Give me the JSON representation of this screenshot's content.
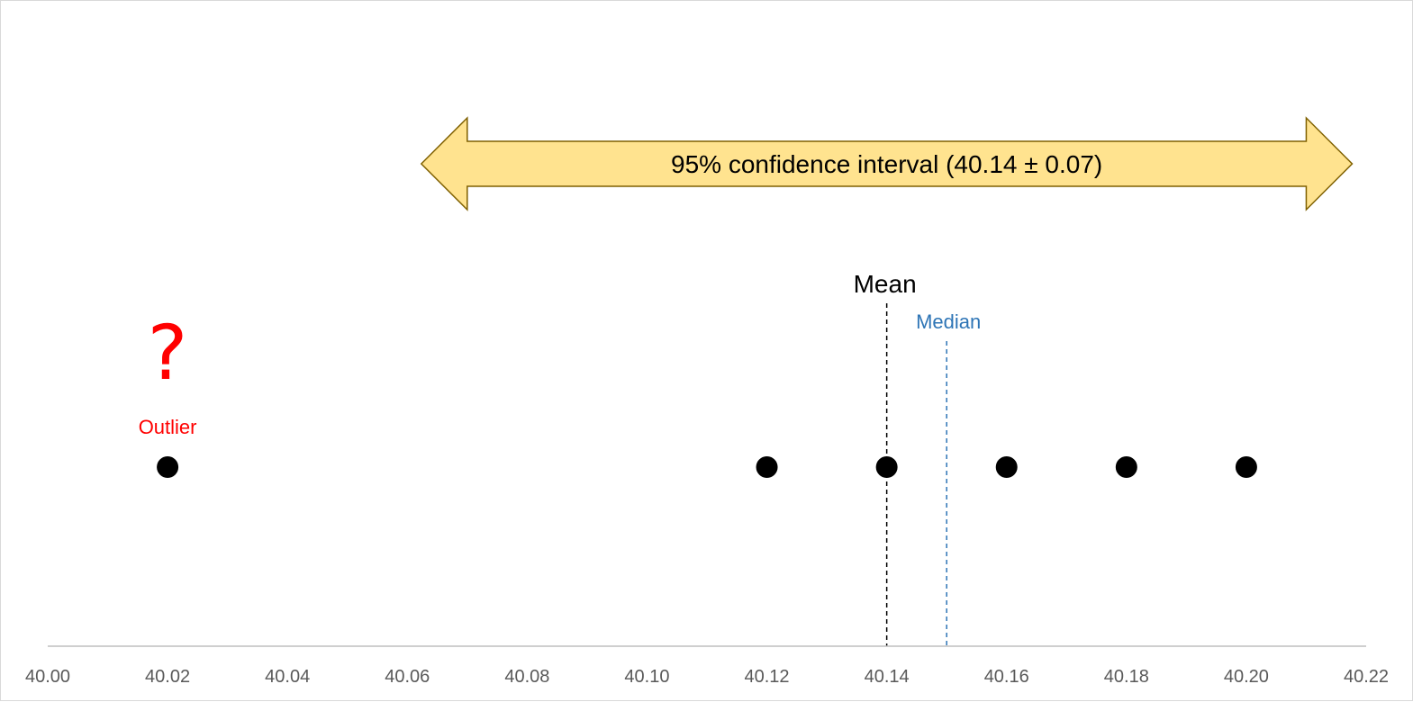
{
  "chart_data": {
    "type": "scatter",
    "title": "",
    "xlabel": "",
    "ylabel": "",
    "xlim": [
      40.0,
      40.22
    ],
    "x_ticks": [
      "40.00",
      "40.02",
      "40.04",
      "40.06",
      "40.08",
      "40.10",
      "40.12",
      "40.14",
      "40.16",
      "40.18",
      "40.20",
      "40.22"
    ],
    "grid": false,
    "points": [
      {
        "x": 40.02,
        "role": "outlier"
      },
      {
        "x": 40.12,
        "role": "data"
      },
      {
        "x": 40.14,
        "role": "data"
      },
      {
        "x": 40.16,
        "role": "data"
      },
      {
        "x": 40.18,
        "role": "data"
      },
      {
        "x": 40.2,
        "role": "data"
      }
    ],
    "mean": {
      "value": 40.14,
      "label": "Mean",
      "color": "#000000"
    },
    "median": {
      "value": 40.15,
      "label": "Median",
      "color": "#2e75b6"
    },
    "confidence_interval": {
      "center": 40.14,
      "half_width": 0.07,
      "label": "95% confidence interval (40.14 ± 0.07)",
      "fill": "#ffe38f",
      "stroke": "#7f6000"
    },
    "outlier": {
      "value": 40.02,
      "label": "Outlier",
      "mark": "?",
      "color": "#ff0000"
    }
  }
}
